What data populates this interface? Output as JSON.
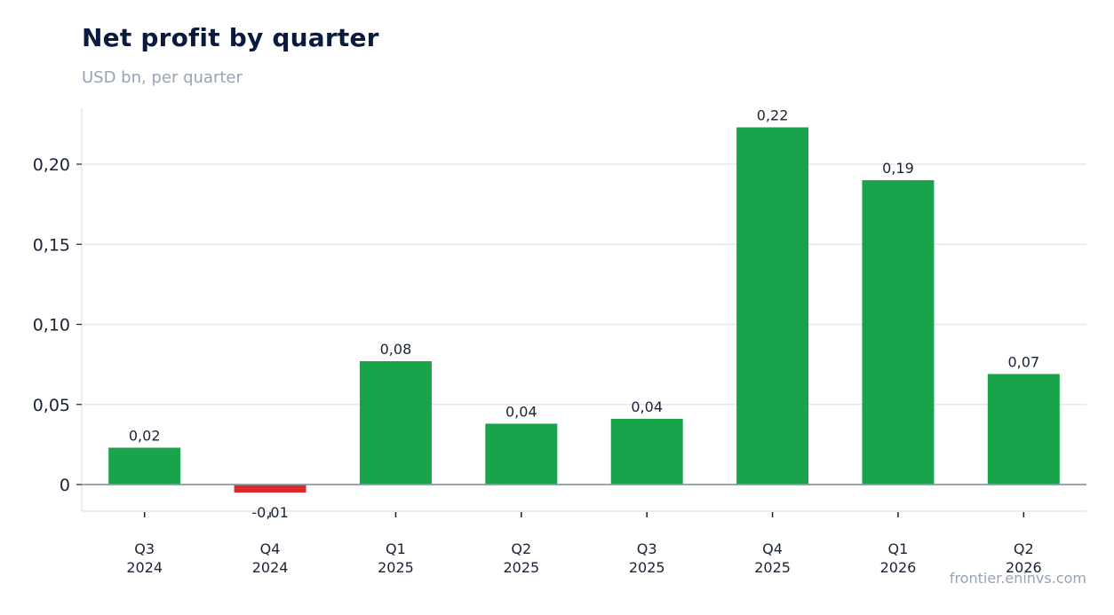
{
  "header": {
    "title": "Net profit by quarter",
    "subtitle": "USD bn, per quarter"
  },
  "footer": {
    "source": "frontier.eninvs.com"
  },
  "colors": {
    "positive": "#19a34a",
    "negative": "#dc2a2a",
    "grid": "#e3e7ee",
    "zero_line": "#8d99a8",
    "axis_frame": "#e3e7ee"
  },
  "chart_data": {
    "type": "bar",
    "title": "Net profit by quarter",
    "subtitle": "USD bn, per quarter",
    "xlabel": "",
    "ylabel": "",
    "categories": [
      [
        "Q3",
        "2024"
      ],
      [
        "Q4",
        "2024"
      ],
      [
        "Q1",
        "2025"
      ],
      [
        "Q2",
        "2025"
      ],
      [
        "Q3",
        "2025"
      ],
      [
        "Q4",
        "2025"
      ],
      [
        "Q1",
        "2026"
      ],
      [
        "Q2",
        "2026"
      ]
    ],
    "values": [
      0.023,
      -0.005,
      0.077,
      0.038,
      0.041,
      0.223,
      0.19,
      0.069
    ],
    "data_labels": [
      "0,02",
      "-0,01",
      "0,08",
      "0,04",
      "0,04",
      "0,22",
      "0,19",
      "0,07"
    ],
    "ylim": [
      -0.0165,
      0.2345
    ],
    "yticks": [
      0,
      0.05,
      0.1,
      0.15,
      0.2
    ],
    "ytick_labels": [
      "0",
      "0,05",
      "0,10",
      "0,15",
      "0,20"
    ],
    "grid": true,
    "legend": "none"
  }
}
